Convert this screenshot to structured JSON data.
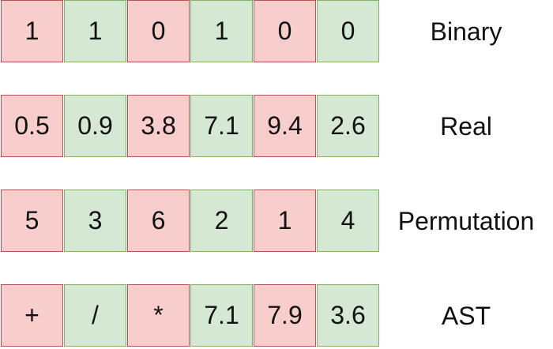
{
  "colors": {
    "red_fill": "#f8cecc",
    "red_border": "#b85450",
    "green_fill": "#d5e8d4",
    "green_border": "#82b366"
  },
  "rows": [
    {
      "label": "Binary",
      "cells": [
        "1",
        "1",
        "0",
        "1",
        "0",
        "0"
      ]
    },
    {
      "label": "Real",
      "cells": [
        "0.5",
        "0.9",
        "3.8",
        "7.1",
        "9.4",
        "2.6"
      ]
    },
    {
      "label": "Permutation",
      "cells": [
        "5",
        "3",
        "6",
        "2",
        "1",
        "4"
      ]
    },
    {
      "label": "AST",
      "cells": [
        "+",
        "/",
        "*",
        "7.1",
        "7.9",
        "3.6"
      ]
    }
  ]
}
